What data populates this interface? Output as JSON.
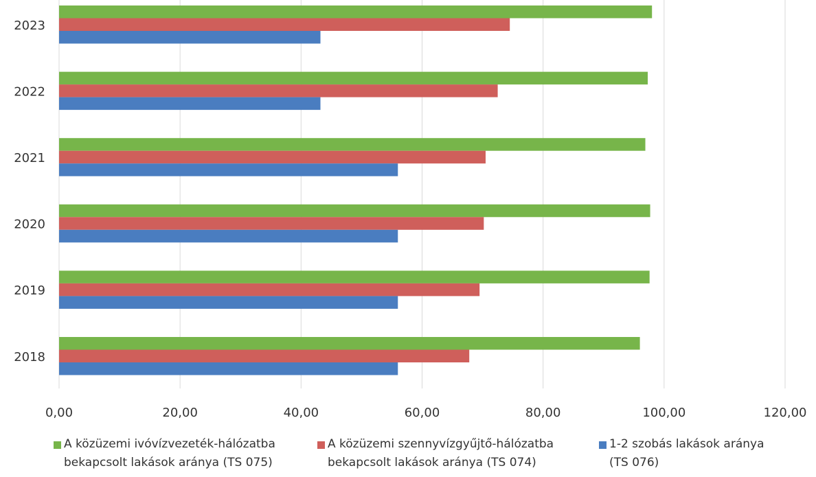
{
  "chart_data": {
    "type": "bar",
    "orientation": "horizontal",
    "categories": [
      "2023",
      "2022",
      "2021",
      "2020",
      "2019",
      "2018"
    ],
    "series": [
      {
        "name": "A közüzemi ivóvízvezeték-hálózatba bekapcsolt lakások aránya (TS 075)",
        "legend_lines": [
          "A közüzemi ivóvízvezeték-hálózatba",
          "bekapcsolt lakások aránya (TS 075)"
        ],
        "color": "#77b54a",
        "values": [
          98.0,
          97.3,
          96.9,
          97.7,
          97.6,
          96.0
        ]
      },
      {
        "name": "A közüzemi szennyvízgyűjtő-hálózatba bekapcsolt lakások aránya (TS 074)",
        "legend_lines": [
          "A közüzemi szennyvízgyűjtő-hálózatba",
          "bekapcsolt lakások aránya (TS 074)"
        ],
        "color": "#cf5f5b",
        "values": [
          74.5,
          72.5,
          70.5,
          70.2,
          69.5,
          67.8
        ]
      },
      {
        "name": "1-2 szobás lakások aránya (TS 076)",
        "legend_lines": [
          "1-2 szobás lakások aránya",
          "(TS 076)"
        ],
        "color": "#4a7dc0",
        "values": [
          43.2,
          43.2,
          56.0,
          56.0,
          56.0,
          56.0
        ]
      }
    ],
    "xlim": [
      0,
      120
    ],
    "xticks": [
      "0,00",
      "20,00",
      "40,00",
      "60,00",
      "80,00",
      "100,00",
      "120,00"
    ],
    "grid": true,
    "legend_position": "bottom"
  }
}
